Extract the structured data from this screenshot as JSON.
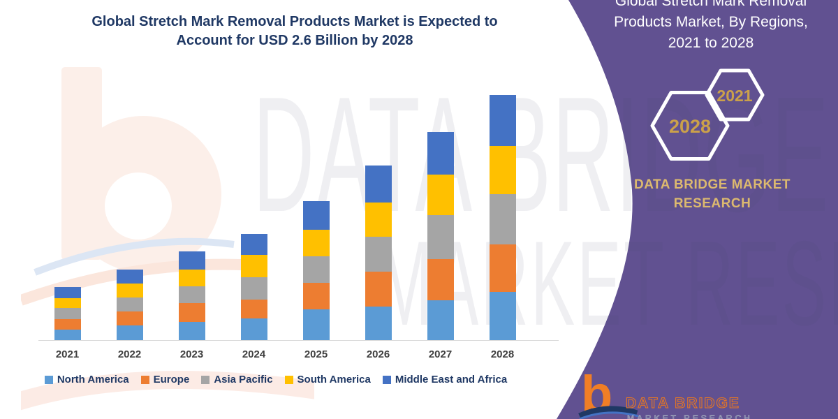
{
  "main": {
    "title_line1": "Global Stretch Mark Removal Products Market is Expected to",
    "title_line2": "Account for USD 2.6 Billion by 2028"
  },
  "chart_data": {
    "type": "bar",
    "stacked": true,
    "title": "Global Stretch Mark Removal Products Market is Expected to Account for USD 2.6 Billion by 2028",
    "unit": "USD Billion",
    "categories": [
      "2021",
      "2022",
      "2023",
      "2024",
      "2025",
      "2026",
      "2027",
      "2028"
    ],
    "series": [
      {
        "name": "North America",
        "color": "#5B9BD5",
        "values": [
          0.12,
          0.16,
          0.2,
          0.24,
          0.33,
          0.36,
          0.43,
          0.52
        ]
      },
      {
        "name": "Europe",
        "color": "#ED7D31",
        "values": [
          0.11,
          0.15,
          0.2,
          0.2,
          0.28,
          0.37,
          0.44,
          0.5
        ]
      },
      {
        "name": "Asia Pacific",
        "color": "#A5A5A5",
        "values": [
          0.12,
          0.15,
          0.18,
          0.24,
          0.28,
          0.37,
          0.47,
          0.53
        ]
      },
      {
        "name": "South America",
        "color": "#FFC000",
        "values": [
          0.1,
          0.15,
          0.18,
          0.24,
          0.28,
          0.36,
          0.43,
          0.51
        ]
      },
      {
        "name": "Middle East and Africa",
        "color": "#4472C4",
        "values": [
          0.12,
          0.15,
          0.19,
          0.22,
          0.3,
          0.39,
          0.45,
          0.54
        ]
      }
    ],
    "totals": [
      0.57,
      0.76,
      0.95,
      1.14,
      1.47,
      1.85,
      2.22,
      2.6
    ],
    "value_axis_visible": false,
    "gridlines": false,
    "legend_position": "bottom",
    "annotation": "USD 2.6 Billion by 2028"
  },
  "banner": {
    "title_line1": "Global Stretch Mark Removal",
    "title_line2": "Products Market, By Regions,",
    "title_line3": "2021 to 2028",
    "hex_large_label": "2028",
    "hex_small_label": "2021",
    "brand_line1": "DATA BRIDGE MARKET",
    "brand_line2": "RESEARCH",
    "background_color": "#615191",
    "gold_color": "#CBA14A"
  },
  "logo": {
    "monogram": "b",
    "wordmark": "DATA BRIDGE",
    "tagline": "MARKET RESEARCH"
  },
  "watermark": {
    "line1": "DATA BRIDGE",
    "line2": "MARKET RESEARCH"
  }
}
